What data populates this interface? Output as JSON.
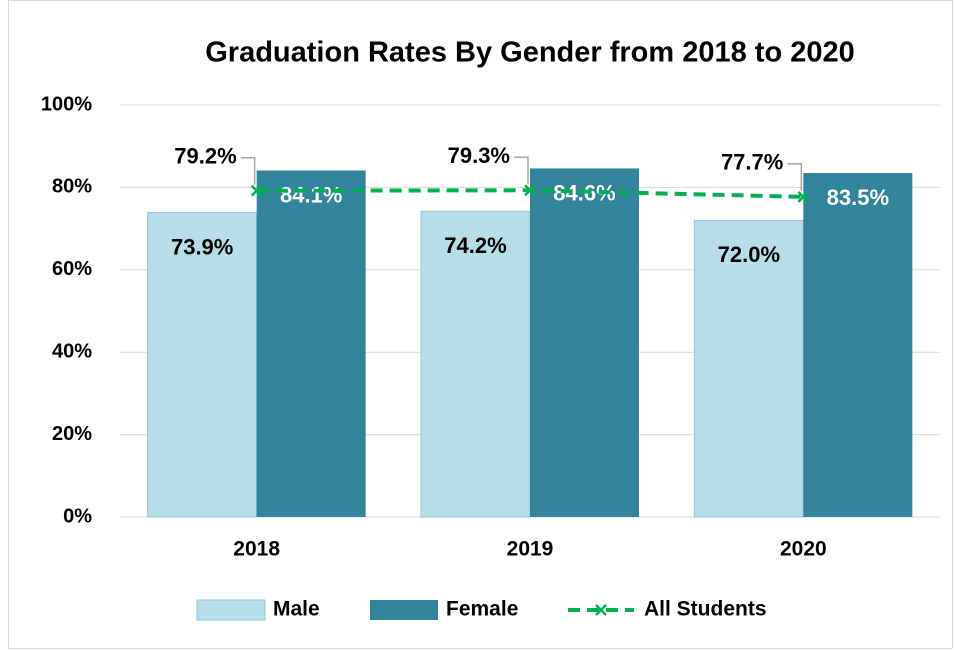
{
  "chart_data": {
    "type": "bar",
    "title": "Graduation Rates By Gender from 2018 to 2020",
    "categories": [
      "2018",
      "2019",
      "2020"
    ],
    "series": [
      {
        "name": "Male",
        "color": "#b7dde8",
        "values": [
          73.9,
          74.2,
          72.0
        ],
        "value_labels": [
          "73.9%",
          "74.2%",
          "72.0%"
        ]
      },
      {
        "name": "Female",
        "color": "#31849b",
        "values": [
          84.1,
          84.6,
          83.5
        ],
        "value_labels": [
          "84.1%",
          "84.6%",
          "83.5%"
        ]
      },
      {
        "name": "All Students",
        "type": "line",
        "color": "#00b050",
        "values": [
          79.2,
          79.3,
          77.7
        ],
        "value_labels": [
          "79.2%",
          "79.3%",
          "77.7%"
        ]
      }
    ],
    "ylim": [
      0,
      100
    ],
    "yticks": [
      {
        "value": 0,
        "label": "0%"
      },
      {
        "value": 20,
        "label": "20%"
      },
      {
        "value": 40,
        "label": "40%"
      },
      {
        "value": 60,
        "label": "60%"
      },
      {
        "value": 80,
        "label": "80%"
      },
      {
        "value": 100,
        "label": "100%"
      }
    ],
    "grid": true,
    "legend": "bottom"
  }
}
